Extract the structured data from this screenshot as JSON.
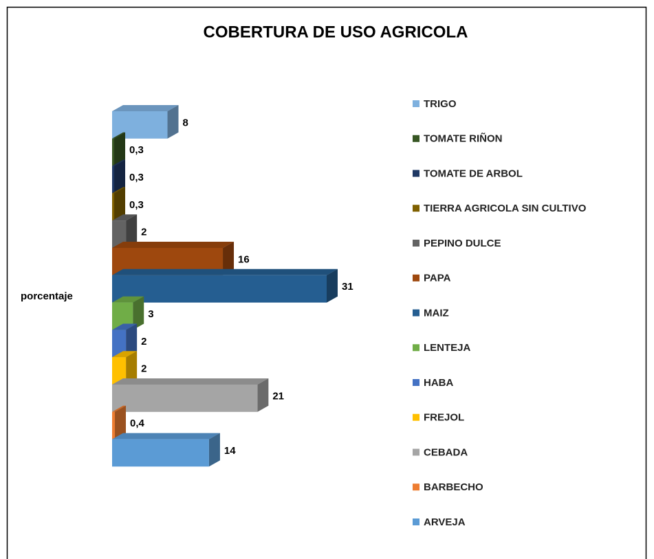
{
  "chart_data": {
    "type": "bar3d-horizontal",
    "title": "COBERTURA DE USO AGRICOLA",
    "categories": [
      "porcentaje"
    ],
    "series": [
      {
        "name": "TRIGO",
        "color": "#7eb0de",
        "values": [
          8
        ]
      },
      {
        "name": "TOMATE RIÑON",
        "color": "#375623",
        "values": [
          0.3
        ],
        "value_labels": [
          "0,3"
        ]
      },
      {
        "name": "TOMATE DE ARBOL",
        "color": "#1f3864",
        "values": [
          0.3
        ],
        "value_labels": [
          "0,3"
        ]
      },
      {
        "name": "TIERRA AGRICOLA SIN CULTIVO",
        "color": "#7f6000",
        "values": [
          0.3
        ],
        "value_labels": [
          "0,3"
        ]
      },
      {
        "name": "PEPINO DULCE",
        "color": "#636363",
        "values": [
          2
        ]
      },
      {
        "name": "PAPA",
        "color": "#9e480e",
        "values": [
          16
        ]
      },
      {
        "name": "MAIZ",
        "color": "#255e91",
        "values": [
          31
        ]
      },
      {
        "name": "LENTEJA",
        "color": "#70ad47",
        "values": [
          3
        ]
      },
      {
        "name": "HABA",
        "color": "#4472c4",
        "values": [
          2
        ]
      },
      {
        "name": "FREJOL",
        "color": "#ffc000",
        "values": [
          2
        ]
      },
      {
        "name": "CEBADA",
        "color": "#a5a5a5",
        "values": [
          21
        ]
      },
      {
        "name": "BARBECHO",
        "color": "#ed7d31",
        "values": [
          0.4
        ],
        "value_labels": [
          "0,4"
        ]
      },
      {
        "name": "ARVEJA",
        "color": "#5b9bd5",
        "values": [
          14
        ]
      }
    ],
    "legend": "right"
  }
}
